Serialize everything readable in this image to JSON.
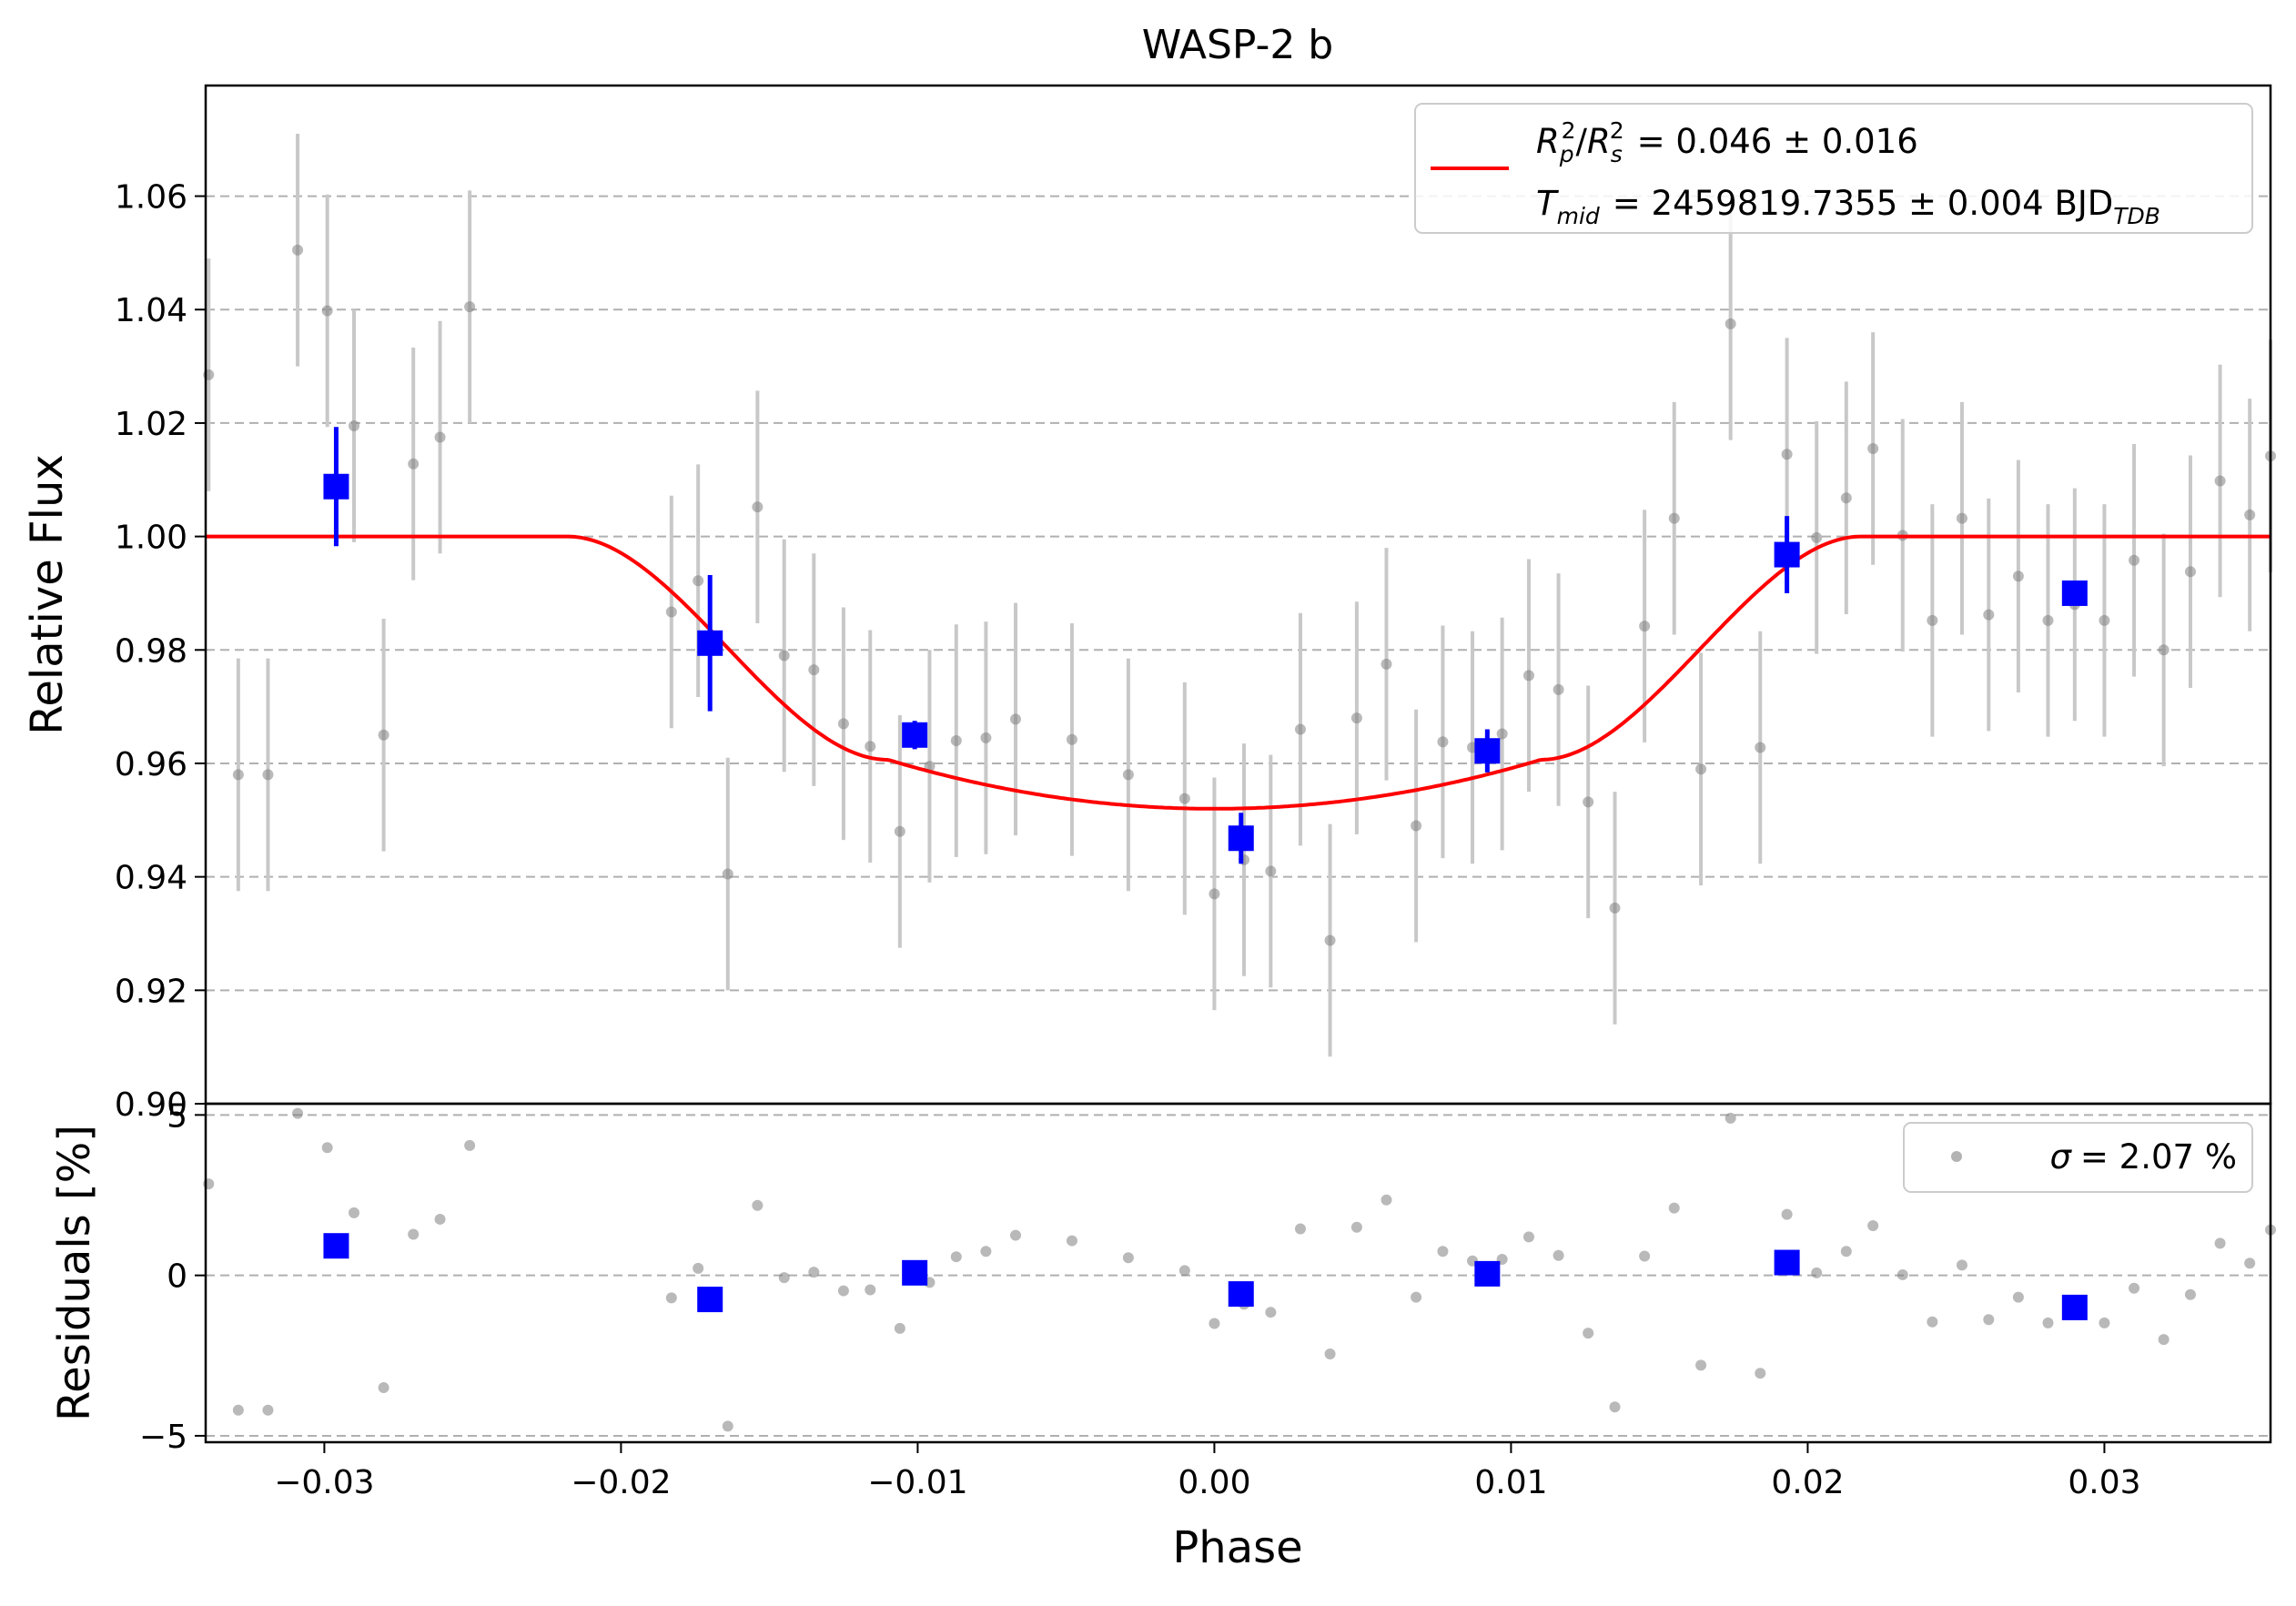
{
  "chart_data": {
    "type": "scatter",
    "title": "WASP-2 b",
    "xlabel": "Phase",
    "xlim": [
      -0.034,
      0.0356
    ],
    "x_ticks": [
      -0.03,
      -0.02,
      -0.01,
      0.0,
      0.01,
      0.02,
      0.03
    ],
    "x_tick_labels": [
      "−0.03",
      "−0.02",
      "−0.01",
      "0.00",
      "0.01",
      "0.02",
      "0.03"
    ],
    "grid": "horizontal-dashed",
    "colors": {
      "raw": "#808080",
      "raw_error": "#c8c8c8",
      "binned": "#0000ff",
      "model": "#ff0000",
      "grid": "#b0b0b0"
    },
    "top_panel": {
      "ylabel": "Relative Flux",
      "ylim": [
        0.9,
        1.0795
      ],
      "y_ticks": [
        0.9,
        0.92,
        0.94,
        0.96,
        0.98,
        1.0,
        1.02,
        1.04,
        1.06
      ],
      "y_tick_labels": [
        "0.90",
        "0.92",
        "0.94",
        "0.96",
        "0.98",
        "1.00",
        "1.02",
        "1.04",
        "1.06"
      ],
      "legend": {
        "placement": "upper-right",
        "line1_base": "= 0.046 ± 0.016",
        "line2_base": "= 2459819.7355 ± 0.004 BJD",
        "r_sym": "R",
        "p_sub": "p",
        "s_sub": "s",
        "sq_sup": "2",
        "slash": "/",
        "t_sym": "T",
        "mid_sub": "mid",
        "tdb_sub": "TDB"
      },
      "model": {
        "name": "transit-model",
        "depth": 0.048,
        "t_contact_outer": 0.0218,
        "t_contact_inner": 0.011
      },
      "raw": {
        "x": [
          -0.0339,
          -0.0329,
          -0.0319,
          -0.0309,
          -0.0299,
          -0.029,
          -0.028,
          -0.027,
          -0.0261,
          -0.0251,
          -0.0183,
          -0.0174,
          -0.0164,
          -0.0154,
          -0.0145,
          -0.0135,
          -0.0125,
          -0.0116,
          -0.0106,
          -0.0096,
          -0.0087,
          -0.0077,
          -0.0067,
          -0.0048,
          -0.0029,
          -0.001,
          0.0,
          0.001,
          0.0019,
          0.0029,
          0.0039,
          0.0048,
          0.0058,
          0.0068,
          0.0077,
          0.0087,
          0.0097,
          0.0106,
          0.0116,
          0.0126,
          0.0135,
          0.0145,
          0.0155,
          0.0164,
          0.0174,
          0.0184,
          0.0193,
          0.0203,
          0.0213,
          0.0222,
          0.0232,
          0.0242,
          0.0252,
          0.0261,
          0.0271,
          0.0281,
          0.029,
          0.03,
          0.031,
          0.032,
          0.0329,
          0.0339,
          0.0349,
          0.0356
        ],
        "y": [
          1.0285,
          0.958,
          0.958,
          1.0505,
          1.0398,
          1.0195,
          0.965,
          1.0128,
          1.0175,
          1.0405,
          0.9867,
          0.9922,
          0.9405,
          1.0052,
          0.979,
          0.9765,
          0.967,
          0.963,
          0.948,
          0.9595,
          0.964,
          0.9645,
          0.9678,
          0.9642,
          0.958,
          0.9538,
          0.937,
          0.943,
          0.941,
          0.966,
          0.9288,
          0.968,
          0.9775,
          0.949,
          0.9638,
          0.9628,
          0.9652,
          0.9755,
          0.973,
          0.9532,
          0.9345,
          0.9842,
          1.0032,
          0.959,
          1.0375,
          0.9628,
          1.0145,
          0.9998,
          1.0068,
          1.0155,
          1.0002,
          0.9852,
          1.0032,
          0.9862,
          0.993,
          0.9852,
          0.988,
          0.9852,
          0.9958,
          0.98,
          0.9938,
          1.0098,
          1.0038,
          1.0142
        ],
        "err": 0.0205
      },
      "binned": {
        "x": [
          -0.0296,
          -0.017,
          -0.0101,
          0.0009,
          0.0092,
          0.0193,
          0.029
        ],
        "y": [
          1.0088,
          0.9812,
          0.965,
          0.9468,
          0.9622,
          0.9968,
          0.99
        ],
        "err": [
          0.0105,
          0.012,
          0.0025,
          0.0045,
          0.0038,
          0.0068,
          0.0
        ]
      }
    },
    "bottom_panel": {
      "ylabel": "Residuals [%]",
      "ylim": [
        -5.2,
        5.35
      ],
      "y_ticks": [
        -5,
        0,
        5
      ],
      "y_tick_labels": [
        "−5",
        "0",
        "5"
      ],
      "legend": {
        "placement": "upper-right",
        "sigma_sym": "σ",
        "label": "= 2.07 %"
      },
      "raw": {
        "x": [
          -0.0339,
          -0.0329,
          -0.0319,
          -0.0309,
          -0.0299,
          -0.029,
          -0.028,
          -0.027,
          -0.0261,
          -0.0251,
          -0.0183,
          -0.0174,
          -0.0164,
          -0.0154,
          -0.0145,
          -0.0135,
          -0.0125,
          -0.0116,
          -0.0106,
          -0.0096,
          -0.0087,
          -0.0077,
          -0.0067,
          -0.0048,
          -0.0029,
          -0.001,
          0.0,
          0.001,
          0.0019,
          0.0029,
          0.0039,
          0.0048,
          0.0058,
          0.0068,
          0.0077,
          0.0087,
          0.0097,
          0.0106,
          0.0116,
          0.0126,
          0.0135,
          0.0145,
          0.0155,
          0.0164,
          0.0174,
          0.0184,
          0.0193,
          0.0203,
          0.0213,
          0.0222,
          0.0232,
          0.0242,
          0.0252,
          0.0261,
          0.0271,
          0.0281,
          0.029,
          0.03,
          0.031,
          0.032,
          0.0329,
          0.0339,
          0.0349,
          0.0356
        ],
        "y": [
          2.85,
          -4.2,
          -4.2,
          5.05,
          3.98,
          1.95,
          -3.5,
          1.28,
          1.75,
          4.05,
          -0.7,
          0.22,
          -4.7,
          2.18,
          -0.07,
          0.1,
          -0.48,
          -0.45,
          -1.65,
          -0.22,
          0.58,
          0.75,
          1.25,
          1.08,
          0.55,
          0.15,
          -1.5,
          -0.9,
          -1.15,
          1.45,
          -2.45,
          1.5,
          2.35,
          -0.68,
          0.75,
          0.45,
          0.5,
          1.2,
          0.62,
          -1.8,
          -4.1,
          0.6,
          2.1,
          -2.8,
          4.9,
          -3.05,
          1.9,
          0.08,
          0.75,
          1.55,
          0.02,
          -1.45,
          0.32,
          -1.38,
          -0.68,
          -1.48,
          -1.0,
          -1.48,
          -0.4,
          -2.0,
          -0.6,
          1.0,
          0.38,
          1.42
        ]
      },
      "binned": {
        "x": [
          -0.0296,
          -0.017,
          -0.0101,
          0.0009,
          0.0092,
          0.0193,
          0.029
        ],
        "y": [
          0.92,
          -0.75,
          0.08,
          -0.58,
          0.05,
          0.4,
          -1.0
        ]
      }
    }
  }
}
